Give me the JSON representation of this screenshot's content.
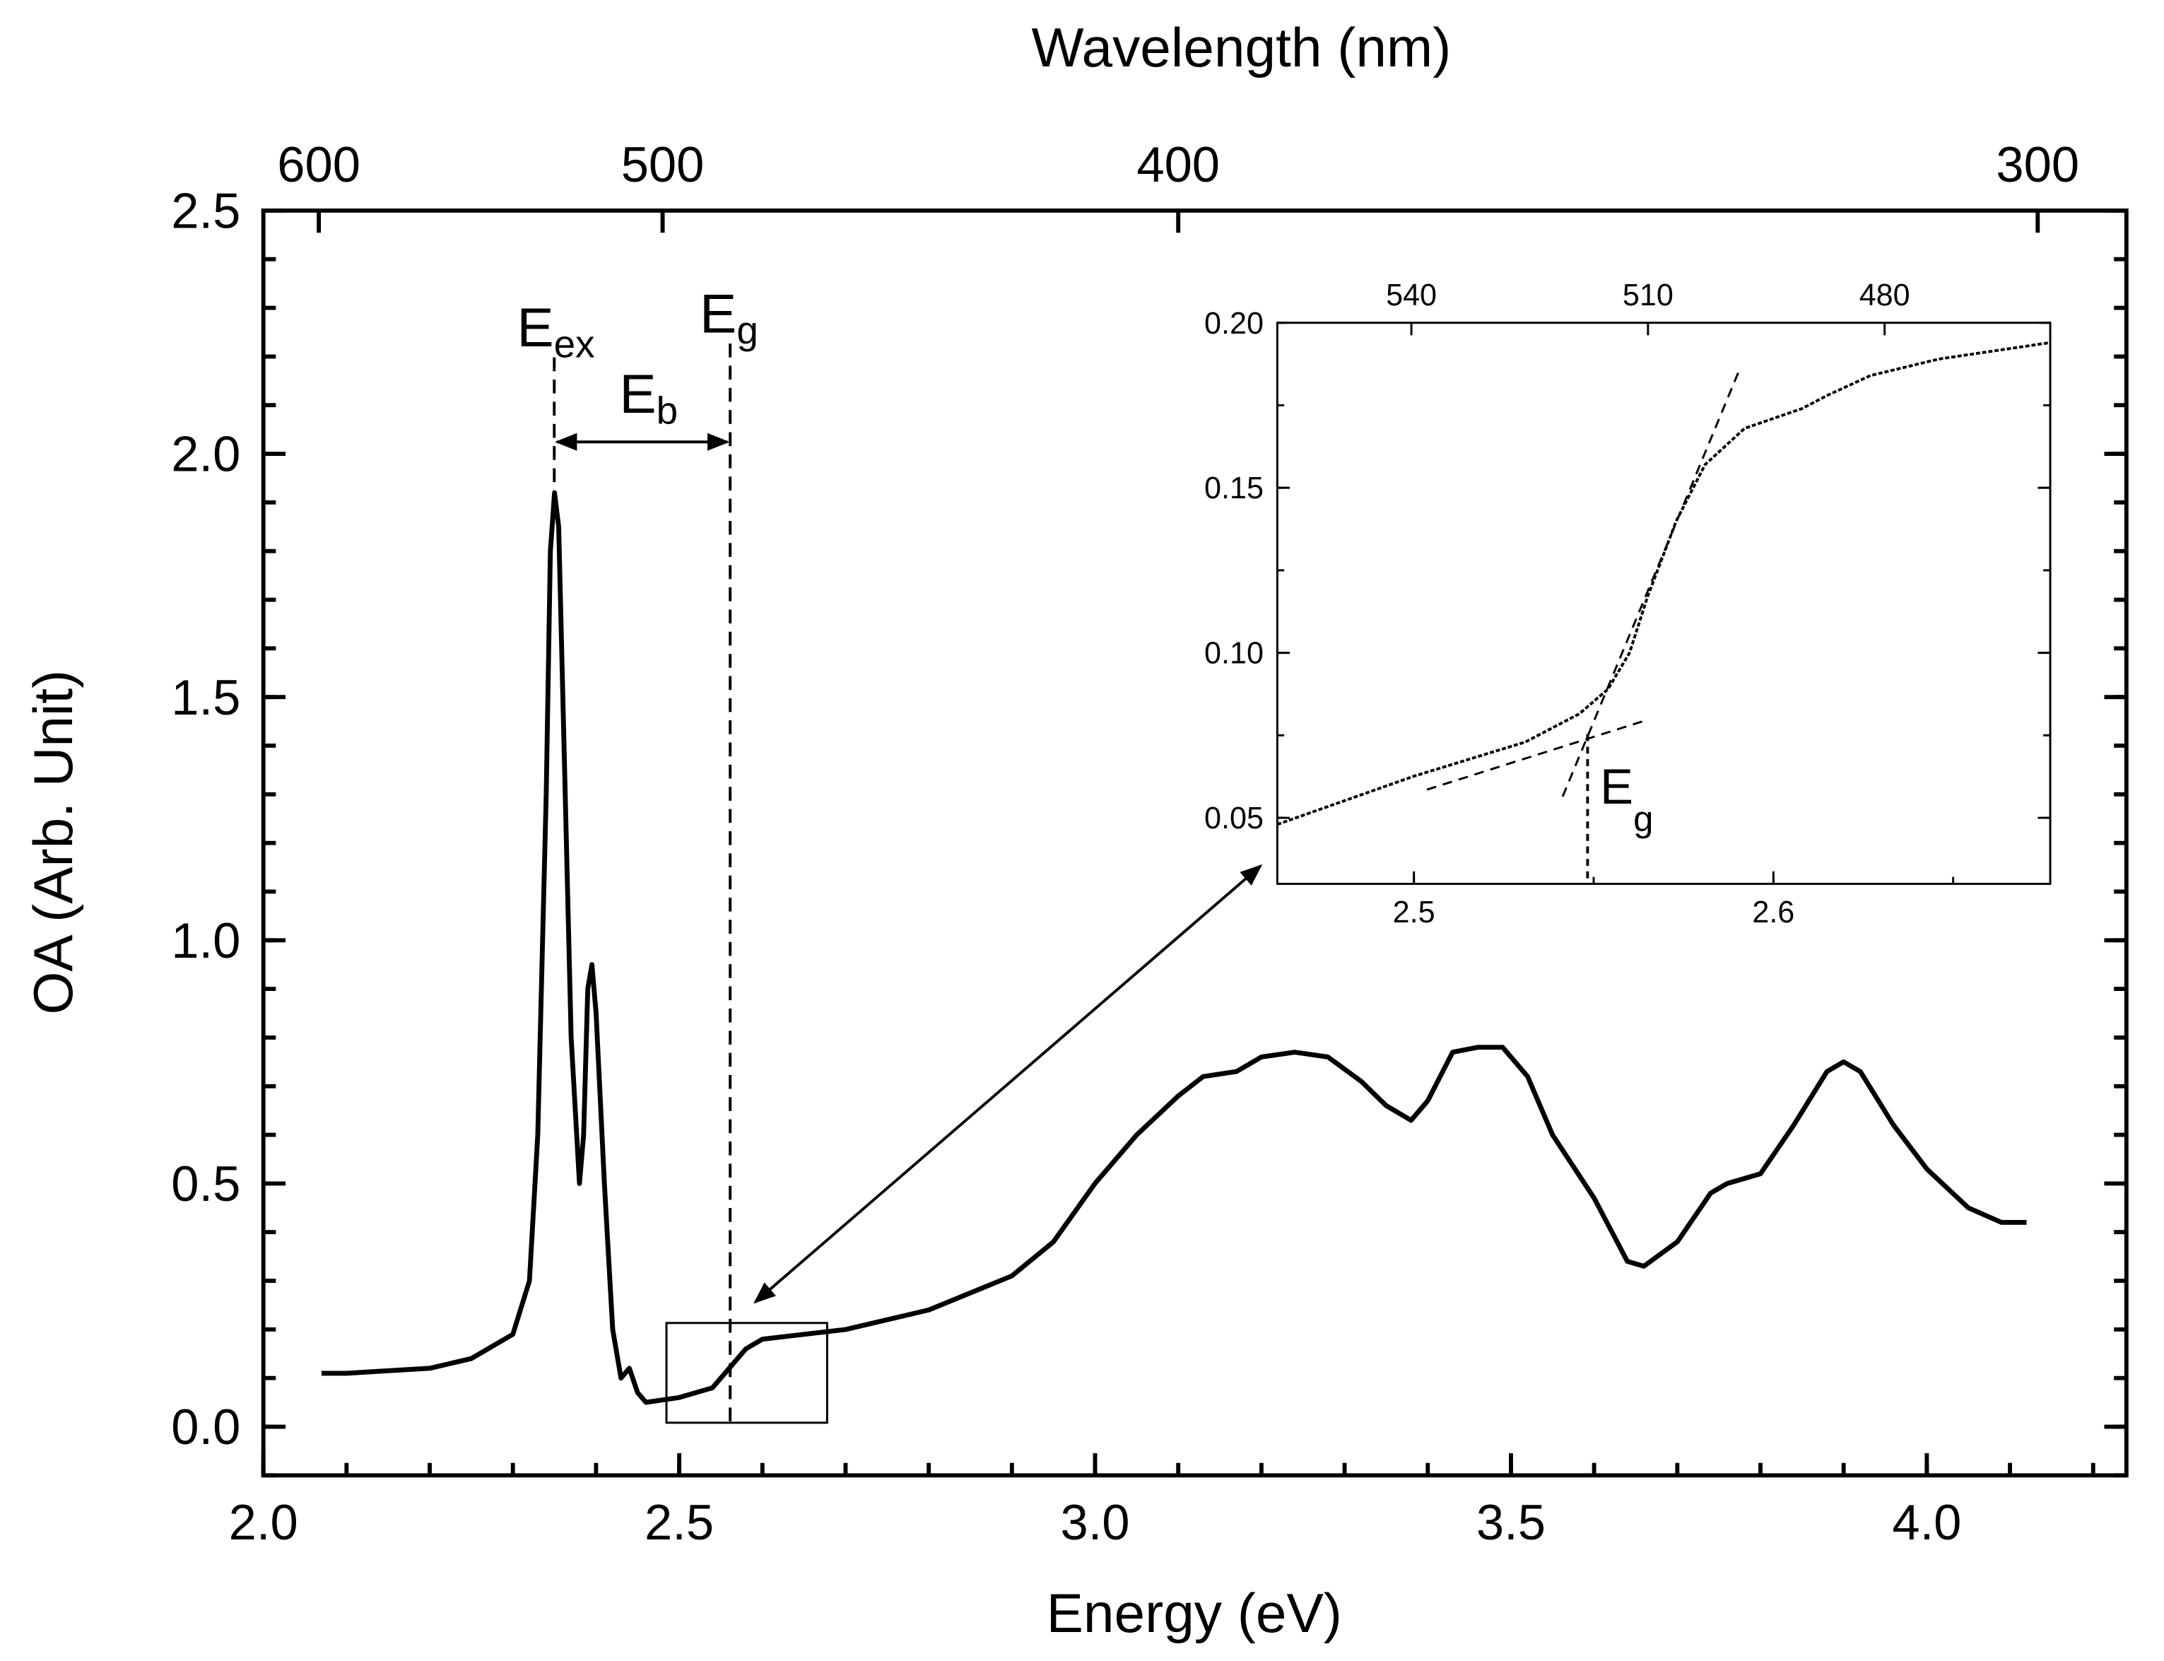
{
  "chart_data": [
    {
      "type": "line",
      "x_label": "Energy (eV)",
      "y_label": "OA (Arb. Unit)",
      "x2_label": "Wavelength (nm)",
      "xlim": [
        2.0,
        4.24
      ],
      "ylim": [
        -0.1,
        2.5
      ],
      "xticks": [
        {
          "value": 2.0,
          "label": "2.0"
        },
        2.5,
        {
          "value": 3.0,
          "label": "3.0"
        },
        3.5,
        {
          "value": 4.0,
          "label": "4.0"
        }
      ],
      "yticks": [
        {
          "value": 0.0,
          "label": "0.0"
        },
        0.5,
        {
          "value": 1.0,
          "label": "1.0"
        },
        1.5,
        {
          "value": 2.0,
          "label": "2.0"
        },
        2.5
      ],
      "x2ticks": [
        600,
        500,
        400,
        300
      ],
      "annotations": [
        {
          "text": "E",
          "sub": "ex"
        },
        {
          "text": "E",
          "sub": "g"
        },
        {
          "text": "E",
          "sub": "b"
        }
      ],
      "series": [
        {
          "color": "#000000",
          "x": [
            2.07,
            2.1,
            2.2,
            2.25,
            2.3,
            2.32,
            2.33,
            2.34,
            2.345,
            2.35,
            2.355,
            2.36,
            2.37,
            2.38,
            2.385,
            2.39,
            2.395,
            2.4,
            2.41,
            2.42,
            2.43,
            2.44,
            2.45,
            2.46,
            2.5,
            2.54,
            2.56,
            2.58,
            2.6,
            2.7,
            2.8,
            2.9,
            2.95,
            3.0,
            3.05,
            3.1,
            3.13,
            3.17,
            3.2,
            3.24,
            3.28,
            3.32,
            3.35,
            3.38,
            3.4,
            3.43,
            3.46,
            3.49,
            3.52,
            3.55,
            3.6,
            3.64,
            3.66,
            3.7,
            3.74,
            3.76,
            3.8,
            3.84,
            3.88,
            3.9,
            3.92,
            3.96,
            4.0,
            4.05,
            4.09,
            4.12
          ],
          "values": [
            0.11,
            0.11,
            0.12,
            0.14,
            0.19,
            0.3,
            0.6,
            1.3,
            1.8,
            1.92,
            1.85,
            1.5,
            0.8,
            0.5,
            0.6,
            0.9,
            0.95,
            0.85,
            0.5,
            0.2,
            0.1,
            0.12,
            0.07,
            0.05,
            0.06,
            0.08,
            0.12,
            0.16,
            0.18,
            0.2,
            0.24,
            0.31,
            0.38,
            0.5,
            0.6,
            0.68,
            0.72,
            0.73,
            0.76,
            0.77,
            0.76,
            0.71,
            0.66,
            0.63,
            0.67,
            0.77,
            0.78,
            0.78,
            0.72,
            0.6,
            0.47,
            0.34,
            0.33,
            0.38,
            0.48,
            0.5,
            0.52,
            0.62,
            0.73,
            0.75,
            0.73,
            0.62,
            0.53,
            0.45,
            0.42,
            0.42
          ]
        }
      ]
    },
    {
      "type": "line",
      "xlim": [
        2.462,
        2.677
      ],
      "ylim": [
        0.03,
        0.2
      ],
      "xticks": [
        2.5,
        2.6
      ],
      "yticks": [
        {
          "value": 0.05,
          "label": "0.05"
        },
        {
          "value": 0.1,
          "label": "0.10"
        },
        0.15,
        {
          "value": 0.2,
          "label": "0.20"
        }
      ],
      "x2lim": [
        557,
        459
      ],
      "x2ticks": [
        540,
        510,
        480
      ],
      "annotations": [
        {
          "text": "E",
          "sub": "g"
        }
      ],
      "series": [
        {
          "color": "#000000",
          "x": [
            2.462,
            2.5,
            2.531,
            2.546,
            2.554,
            2.56,
            2.565,
            2.573,
            2.581,
            2.592,
            2.608,
            2.615,
            2.627,
            2.646,
            2.677
          ],
          "values": [
            0.048,
            0.0626,
            0.073,
            0.0815,
            0.089,
            0.1,
            0.117,
            0.14,
            0.157,
            0.168,
            0.174,
            0.178,
            0.184,
            0.189,
            0.194
          ]
        }
      ]
    }
  ]
}
